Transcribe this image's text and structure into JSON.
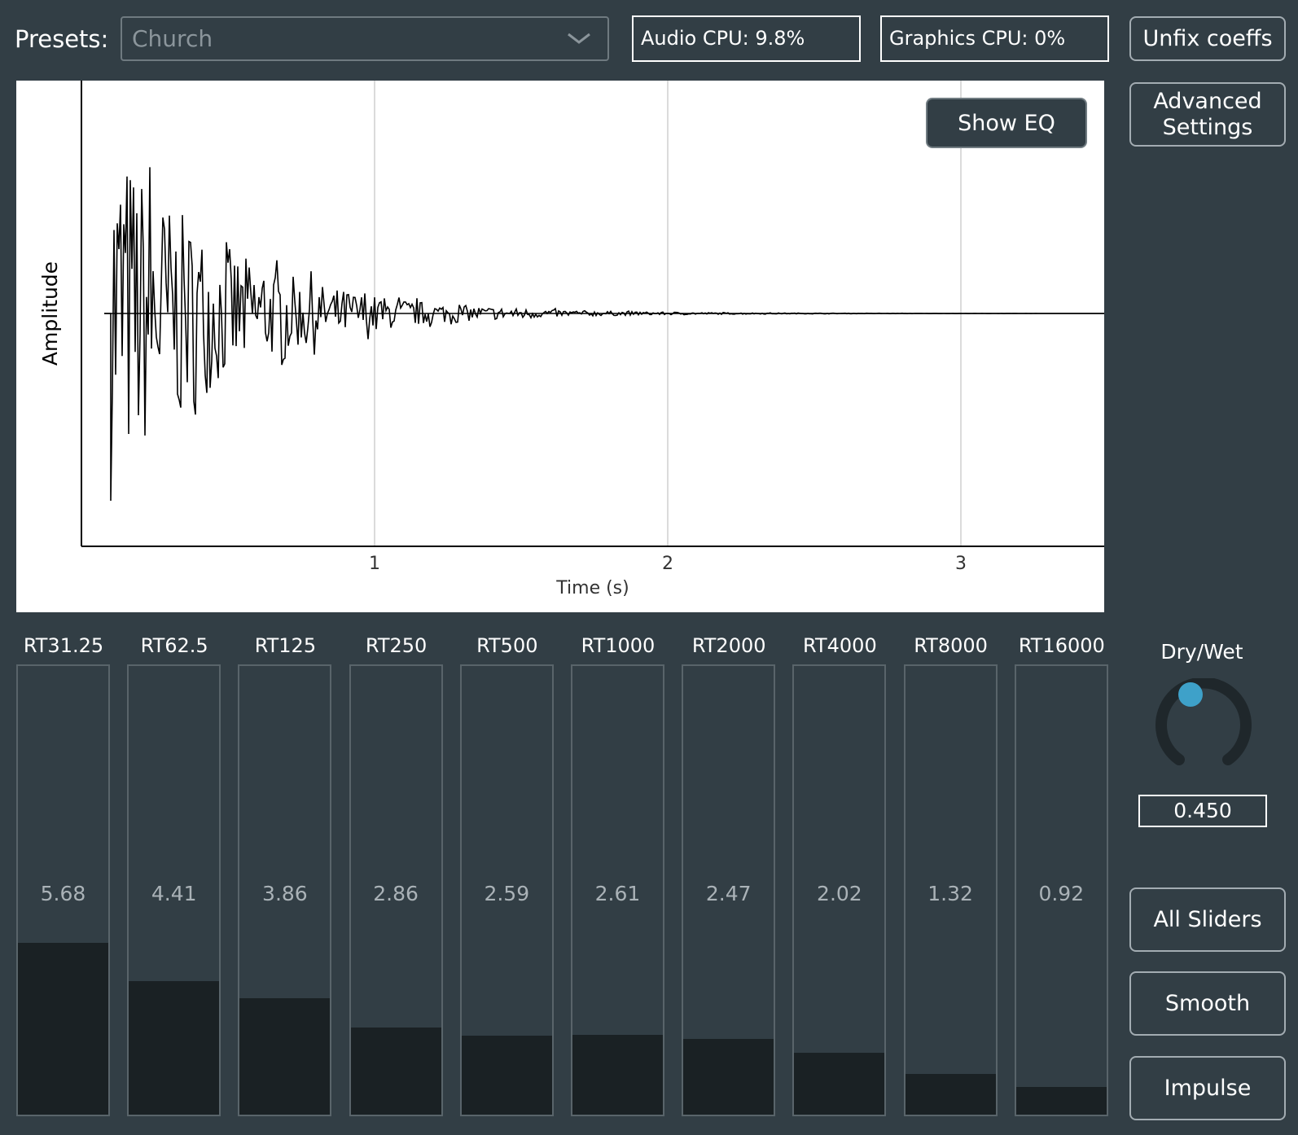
{
  "presets": {
    "label": "Presets:",
    "selected": "Church"
  },
  "status": {
    "audio_cpu": "Audio CPU: 9.8%",
    "graphics_cpu": "Graphics CPU: 0%"
  },
  "buttons": {
    "unfix_coeffs": "Unfix coeffs",
    "advanced_settings_line1": "Advanced",
    "advanced_settings_line2": "Settings",
    "show_eq": "Show EQ",
    "all_sliders": "All Sliders",
    "smooth": "Smooth",
    "impulse": "Impulse"
  },
  "chart_data": {
    "type": "line",
    "xlabel": "Time (s)",
    "ylabel": "Amplitude",
    "xticks": [
      "1",
      "2",
      "3"
    ],
    "xlim": [
      0,
      3.5
    ],
    "ylim": [
      -1,
      1
    ],
    "grid": true,
    "series": [
      {
        "description": "decaying impulse response waveform",
        "onset_s": 0.1,
        "peak_amplitude": 0.8,
        "decay_to_zero_s": 2.2
      }
    ]
  },
  "sliders": [
    {
      "label": "RT31.25",
      "value": "5.68",
      "fill": 0.38
    },
    {
      "label": "RT62.5",
      "value": "4.41",
      "fill": 0.295
    },
    {
      "label": "RT125",
      "value": "3.86",
      "fill": 0.258
    },
    {
      "label": "RT250",
      "value": "2.86",
      "fill": 0.193
    },
    {
      "label": "RT500",
      "value": "2.59",
      "fill": 0.175
    },
    {
      "label": "RT1000",
      "value": "2.61",
      "fill": 0.176
    },
    {
      "label": "RT2000",
      "value": "2.47",
      "fill": 0.167
    },
    {
      "label": "RT4000",
      "value": "2.02",
      "fill": 0.137
    },
    {
      "label": "RT8000",
      "value": "1.32",
      "fill": 0.09
    },
    {
      "label": "RT16000",
      "value": "0.92",
      "fill": 0.062
    }
  ],
  "drywet": {
    "label": "Dry/Wet",
    "value": "0.450"
  },
  "colors": {
    "background": "#323e45",
    "knob_accent": "#3ea1c9",
    "slider_fill": "#1a2124"
  }
}
